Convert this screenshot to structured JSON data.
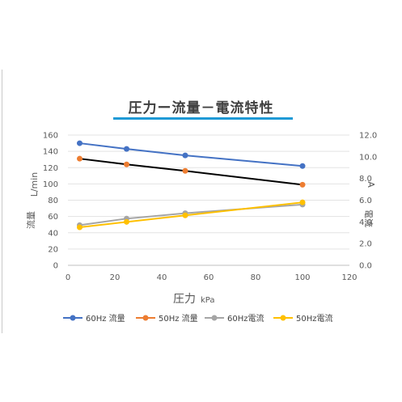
{
  "chart_data": {
    "type": "line",
    "title": "圧力ー流量－電流特性",
    "xlabel": "圧力",
    "xunit": "kPa",
    "ylabel_left_unit": "L/min",
    "ylabel_left": "流量",
    "ylabel_right": "電流",
    "ylabel_right_unit": "A",
    "xlim": [
      0,
      120
    ],
    "ylim_left": [
      0,
      160
    ],
    "ylim_right": [
      0.0,
      12.0
    ],
    "x_ticks": [
      "0",
      "20",
      "40",
      "60",
      "80",
      "100",
      "120"
    ],
    "y_left_ticks": [
      "0",
      "20",
      "40",
      "60",
      "80",
      "100",
      "120",
      "140",
      "160"
    ],
    "y_right_ticks": [
      "0.0",
      "2.0",
      "4.0",
      "6.0",
      "8.0",
      "10.0",
      "12.0"
    ],
    "grid": "horizontal",
    "legend_position": "bottom",
    "series": [
      {
        "name": "60Hz 流量",
        "axis": "left",
        "color": "#4472c4",
        "line_color": "#4472c4",
        "x": [
          5,
          25,
          50,
          100
        ],
        "y": [
          150,
          143,
          135,
          122
        ]
      },
      {
        "name": "50Hz 流量",
        "axis": "left",
        "color": "#ed7d31",
        "line_color": "#000000",
        "x": [
          5,
          25,
          50,
          100
        ],
        "y": [
          131,
          124,
          116,
          99
        ]
      },
      {
        "name": "60Hz電流",
        "axis": "right",
        "color": "#a5a5a5",
        "line_color": "#a5a5a5",
        "x": [
          5,
          25,
          50,
          100
        ],
        "y": [
          3.7,
          4.3,
          4.8,
          5.6
        ]
      },
      {
        "name": "50Hz電流",
        "axis": "right",
        "color": "#ffc000",
        "line_color": "#ffc000",
        "x": [
          5,
          25,
          50,
          100
        ],
        "y": [
          3.5,
          4.0,
          4.6,
          5.8
        ]
      }
    ]
  }
}
